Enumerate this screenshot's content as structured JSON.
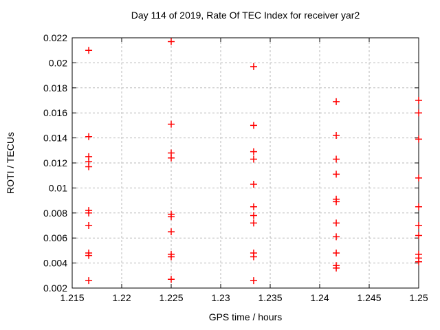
{
  "chart_data": {
    "type": "scatter",
    "title": "Day 114 of 2019, Rate Of TEC Index for receiver yar2",
    "xlabel": "GPS time / hours",
    "ylabel": "ROTI / TECUs",
    "xlim": [
      1.215,
      1.25
    ],
    "ylim": [
      0.002,
      0.022
    ],
    "x_ticks": [
      1.215,
      1.22,
      1.225,
      1.23,
      1.235,
      1.24,
      1.245,
      1.25
    ],
    "x_tick_labels": [
      "1.215",
      "1.22",
      "1.225",
      "1.23",
      "1.235",
      "1.24",
      "1.245",
      "1.25"
    ],
    "y_ticks": [
      0.002,
      0.004,
      0.006,
      0.008,
      0.01,
      0.012,
      0.014,
      0.016,
      0.018,
      0.02,
      0.022
    ],
    "y_tick_labels": [
      "0.002",
      "0.004",
      "0.006",
      "0.008",
      "0.01",
      "0.012",
      "0.014",
      "0.016",
      "0.018",
      "0.02",
      "0.022"
    ],
    "grid": true,
    "legend": "none",
    "marker": {
      "shape": "plus",
      "color": "#ff0000",
      "size": 10
    },
    "colors": {
      "border": "#000000",
      "grid": "#b8b8b8",
      "text": "#000000",
      "background": "#ffffff"
    },
    "series": [
      {
        "points": [
          [
            1.21667,
            0.021
          ],
          [
            1.21667,
            0.0141
          ],
          [
            1.21667,
            0.0125
          ],
          [
            1.21667,
            0.0121
          ],
          [
            1.21667,
            0.0117
          ],
          [
            1.21667,
            0.0082
          ],
          [
            1.21667,
            0.008
          ],
          [
            1.21667,
            0.007
          ],
          [
            1.21667,
            0.0048
          ],
          [
            1.21667,
            0.0046
          ],
          [
            1.21667,
            0.0026
          ],
          [
            1.225,
            0.0217
          ],
          [
            1.225,
            0.0151
          ],
          [
            1.225,
            0.0128
          ],
          [
            1.225,
            0.0124
          ],
          [
            1.225,
            0.0079
          ],
          [
            1.225,
            0.0077
          ],
          [
            1.225,
            0.0065
          ],
          [
            1.225,
            0.0047
          ],
          [
            1.225,
            0.0045
          ],
          [
            1.225,
            0.0027
          ],
          [
            1.23333,
            0.0197
          ],
          [
            1.23333,
            0.015
          ],
          [
            1.23333,
            0.0129
          ],
          [
            1.23333,
            0.0123
          ],
          [
            1.23333,
            0.0103
          ],
          [
            1.23333,
            0.0085
          ],
          [
            1.23333,
            0.0078
          ],
          [
            1.23333,
            0.0072
          ],
          [
            1.23333,
            0.0048
          ],
          [
            1.23333,
            0.0045
          ],
          [
            1.23333,
            0.0026
          ],
          [
            1.24167,
            0.0169
          ],
          [
            1.24167,
            0.0142
          ],
          [
            1.24167,
            0.0123
          ],
          [
            1.24167,
            0.0111
          ],
          [
            1.24167,
            0.0091
          ],
          [
            1.24167,
            0.0089
          ],
          [
            1.24167,
            0.0072
          ],
          [
            1.24167,
            0.0061
          ],
          [
            1.24167,
            0.0048
          ],
          [
            1.24167,
            0.0038
          ],
          [
            1.24167,
            0.0036
          ],
          [
            1.25,
            0.017
          ],
          [
            1.25,
            0.016
          ],
          [
            1.25,
            0.0139
          ],
          [
            1.25,
            0.0108
          ],
          [
            1.25,
            0.0085
          ],
          [
            1.25,
            0.007
          ],
          [
            1.25,
            0.0062
          ],
          [
            1.25,
            0.0047
          ],
          [
            1.25,
            0.0044
          ],
          [
            1.25,
            0.0041
          ]
        ]
      }
    ]
  }
}
